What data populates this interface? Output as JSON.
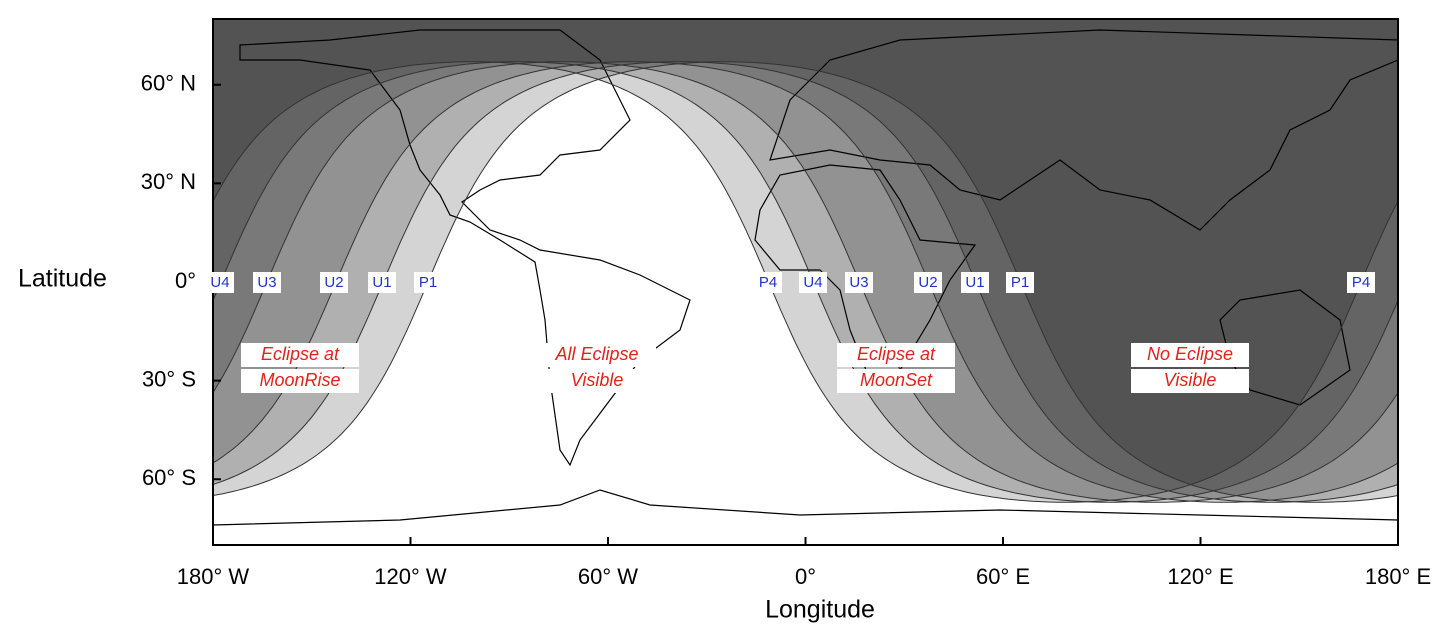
{
  "map": {
    "x_label": "Longitude",
    "y_label": "Latitude",
    "xlim": [
      -180,
      180
    ],
    "ylim": [
      -80,
      80
    ],
    "xticks": [
      {
        "value": -180,
        "label": "180° W"
      },
      {
        "value": -120,
        "label": "120° W"
      },
      {
        "value": -60,
        "label": "60° W"
      },
      {
        "value": 0,
        "label": "0°"
      },
      {
        "value": 60,
        "label": "60° E"
      },
      {
        "value": 120,
        "label": "120° E"
      },
      {
        "value": 180,
        "label": "180° E"
      }
    ],
    "yticks": [
      {
        "value": 60,
        "label": "60° N"
      },
      {
        "value": 30,
        "label": "30° N"
      },
      {
        "value": 0,
        "label": "0°"
      },
      {
        "value": -30,
        "label": "30° S"
      },
      {
        "value": -60,
        "label": "60° S"
      }
    ],
    "contacts": [
      "U4",
      "U3",
      "U2",
      "U1",
      "P1",
      "P4",
      "U4",
      "U3",
      "U2",
      "U1",
      "P1",
      "P4"
    ],
    "regions": [
      [
        "Eclipse at",
        "MoonRise"
      ],
      [
        "All Eclipse",
        "Visible"
      ],
      [
        "Eclipse at",
        "MoonSet"
      ],
      [
        "No Eclipse",
        "Visible"
      ]
    ]
  }
}
